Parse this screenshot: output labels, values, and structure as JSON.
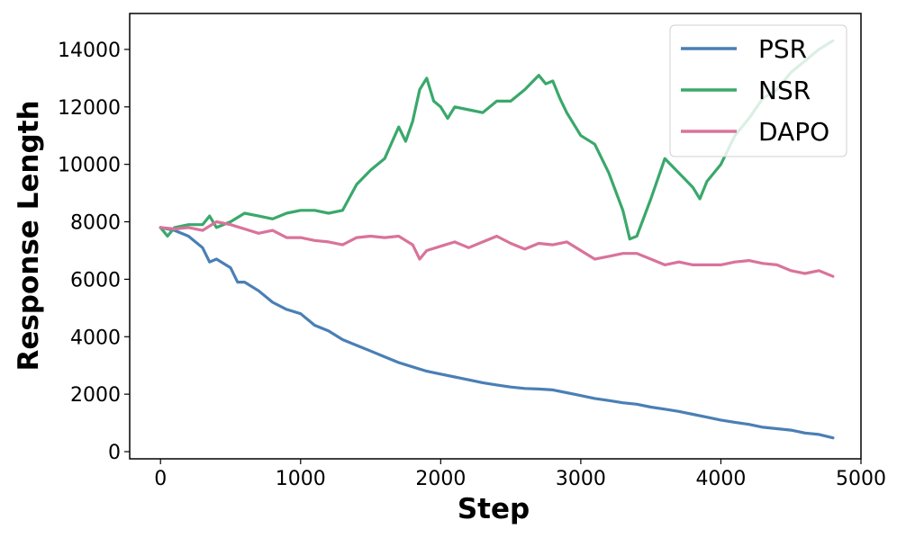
{
  "chart_data": {
    "type": "line",
    "title": "",
    "xlabel": "Step",
    "ylabel": "Response Length",
    "xlim": [
      -220,
      5000
    ],
    "ylim": [
      -250,
      15250
    ],
    "xticks": [
      0,
      1000,
      2000,
      3000,
      4000,
      5000
    ],
    "yticks": [
      0,
      2000,
      4000,
      6000,
      8000,
      10000,
      12000,
      14000
    ],
    "grid": false,
    "legend_position": "top-right",
    "series": [
      {
        "name": "PSR",
        "color": "#4a7fb5",
        "x": [
          0,
          100,
          200,
          300,
          350,
          400,
          500,
          550,
          600,
          700,
          800,
          900,
          1000,
          1100,
          1200,
          1300,
          1400,
          1500,
          1600,
          1700,
          1800,
          1900,
          2000,
          2100,
          2200,
          2300,
          2400,
          2500,
          2600,
          2700,
          2800,
          2900,
          3000,
          3100,
          3200,
          3300,
          3400,
          3500,
          3600,
          3700,
          3800,
          3900,
          4000,
          4100,
          4200,
          4300,
          4400,
          4500,
          4600,
          4700,
          4800
        ],
        "y": [
          7800,
          7700,
          7500,
          7100,
          6600,
          6700,
          6400,
          5900,
          5900,
          5600,
          5200,
          4950,
          4800,
          4400,
          4200,
          3900,
          3700,
          3500,
          3300,
          3100,
          2950,
          2800,
          2700,
          2600,
          2500,
          2400,
          2320,
          2250,
          2200,
          2180,
          2150,
          2050,
          1950,
          1850,
          1780,
          1700,
          1650,
          1550,
          1480,
          1400,
          1300,
          1200,
          1100,
          1020,
          950,
          850,
          800,
          750,
          650,
          600,
          480
        ]
      },
      {
        "name": "NSR",
        "color": "#3aa86b",
        "x": [
          0,
          50,
          100,
          200,
          300,
          350,
          400,
          500,
          600,
          700,
          800,
          900,
          1000,
          1100,
          1200,
          1300,
          1400,
          1500,
          1600,
          1700,
          1750,
          1800,
          1850,
          1900,
          1950,
          2000,
          2050,
          2100,
          2200,
          2300,
          2400,
          2500,
          2600,
          2700,
          2750,
          2800,
          2850,
          2900,
          3000,
          3100,
          3200,
          3300,
          3350,
          3400,
          3500,
          3600,
          3700,
          3800,
          3850,
          3900,
          4000,
          4100,
          4200,
          4300,
          4400,
          4500,
          4600,
          4700,
          4800
        ],
        "y": [
          7800,
          7500,
          7800,
          7900,
          7900,
          8200,
          7800,
          8000,
          8300,
          8200,
          8100,
          8300,
          8400,
          8400,
          8300,
          8400,
          9300,
          9800,
          10200,
          11300,
          10800,
          11500,
          12600,
          13000,
          12200,
          12000,
          11600,
          12000,
          11900,
          11800,
          12200,
          12200,
          12600,
          13100,
          12800,
          12900,
          12300,
          11800,
          11000,
          10700,
          9700,
          8400,
          7400,
          7500,
          8800,
          10200,
          9700,
          9200,
          8800,
          9400,
          10000,
          11000,
          11600,
          12300,
          12600,
          13200,
          13600,
          14000,
          14300
        ]
      },
      {
        "name": "DAPO",
        "color": "#d9739a",
        "x": [
          0,
          100,
          200,
          300,
          400,
          500,
          600,
          700,
          800,
          900,
          1000,
          1100,
          1200,
          1300,
          1400,
          1500,
          1600,
          1700,
          1800,
          1850,
          1900,
          2000,
          2100,
          2200,
          2300,
          2400,
          2500,
          2600,
          2700,
          2800,
          2900,
          3000,
          3100,
          3200,
          3300,
          3400,
          3500,
          3600,
          3700,
          3800,
          3900,
          4000,
          4100,
          4200,
          4300,
          4400,
          4500,
          4600,
          4700,
          4800
        ],
        "y": [
          7800,
          7750,
          7800,
          7700,
          8000,
          7900,
          7750,
          7600,
          7700,
          7450,
          7450,
          7350,
          7300,
          7200,
          7450,
          7500,
          7450,
          7500,
          7200,
          6700,
          7000,
          7150,
          7300,
          7100,
          7300,
          7500,
          7250,
          7050,
          7250,
          7200,
          7300,
          7000,
          6700,
          6800,
          6900,
          6900,
          6700,
          6500,
          6600,
          6500,
          6500,
          6500,
          6600,
          6650,
          6550,
          6500,
          6300,
          6200,
          6300,
          6100
        ]
      }
    ]
  }
}
